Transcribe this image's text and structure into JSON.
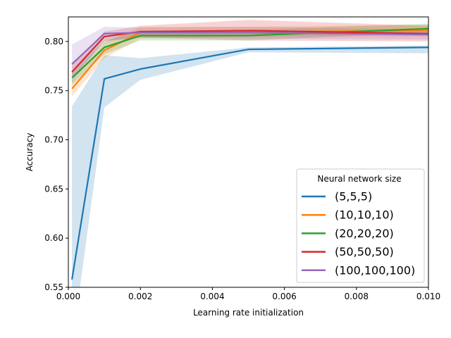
{
  "chart_data": {
    "type": "line",
    "title": "",
    "xlabel": "Learning rate initialization",
    "ylabel": "Accuracy",
    "xlim": [
      0,
      0.01
    ],
    "ylim": [
      0.55,
      0.825
    ],
    "xticks": [
      0,
      0.002,
      0.004,
      0.006,
      0.008,
      0.01
    ],
    "xtick_labels": [
      "0.000",
      "0.002",
      "0.004",
      "0.006",
      "0.008",
      "0.010"
    ],
    "yticks": [
      0.55,
      0.6,
      0.65,
      0.7,
      0.75,
      0.8
    ],
    "ytick_labels": [
      "0.55",
      "0.60",
      "0.65",
      "0.70",
      "0.75",
      "0.80"
    ],
    "grid": false,
    "legend": {
      "title": "Neural network size",
      "placement": "lower-right"
    },
    "x": [
      0.0001,
      0.001,
      0.002,
      0.005,
      0.01
    ],
    "series": [
      {
        "name": "(5,5,5)",
        "color": "#1f77b4",
        "values": [
          0.558,
          0.762,
          0.772,
          0.792,
          0.794
        ],
        "lower": [
          0.49,
          0.733,
          0.761,
          0.789,
          0.788
        ],
        "upper": [
          0.734,
          0.786,
          0.783,
          0.794,
          0.796
        ]
      },
      {
        "name": "(10,10,10)",
        "color": "#ff7f0e",
        "values": [
          0.752,
          0.791,
          0.809,
          0.81,
          0.811
        ],
        "lower": [
          0.744,
          0.783,
          0.803,
          0.805,
          0.805
        ],
        "upper": [
          0.76,
          0.799,
          0.815,
          0.815,
          0.817
        ]
      },
      {
        "name": "(20,20,20)",
        "color": "#2ca02c",
        "values": [
          0.763,
          0.794,
          0.806,
          0.806,
          0.813
        ],
        "lower": [
          0.756,
          0.787,
          0.801,
          0.801,
          0.809
        ],
        "upper": [
          0.77,
          0.801,
          0.811,
          0.812,
          0.818
        ]
      },
      {
        "name": "(50,50,50)",
        "color": "#d62728",
        "values": [
          0.769,
          0.805,
          0.81,
          0.811,
          0.808
        ],
        "lower": [
          0.762,
          0.8,
          0.804,
          0.801,
          0.8
        ],
        "upper": [
          0.776,
          0.81,
          0.816,
          0.822,
          0.816
        ]
      },
      {
        "name": "(100,100,100)",
        "color": "#9467bd",
        "values": [
          0.777,
          0.808,
          0.809,
          0.809,
          0.807
        ],
        "lower": [
          0.758,
          0.801,
          0.804,
          0.803,
          0.802
        ],
        "upper": [
          0.797,
          0.815,
          0.814,
          0.815,
          0.812
        ]
      }
    ]
  }
}
